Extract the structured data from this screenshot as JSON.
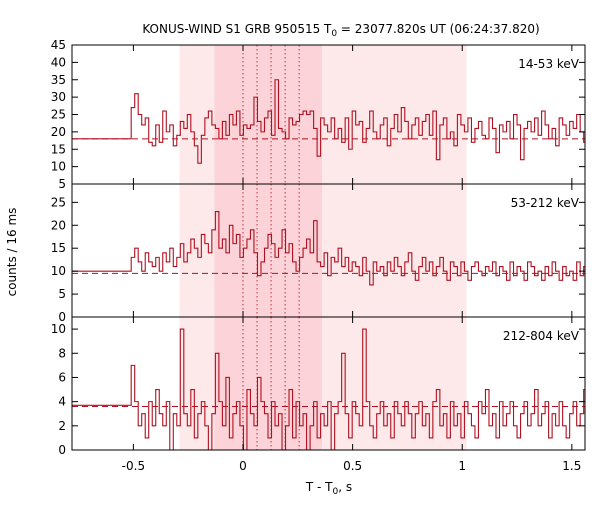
{
  "chart_data": {
    "type": "line",
    "title_main": "KONUS-WIND S1 GRB 950515 T",
    "title_sub": "0",
    "title_rest": " = 23077.820s UT (06:24:37.820)",
    "xlabel_main": "T - T",
    "xlabel_sub": "0",
    "xlabel_rest": ", s",
    "ylabel": "counts / 16 ms",
    "xlim": [
      -0.78,
      1.56
    ],
    "xticks": [
      -0.5,
      0,
      0.5,
      1,
      1.5
    ],
    "xtick_labels": [
      "-0.5",
      "0",
      "0.5",
      "1",
      "1.5"
    ],
    "bin_width_s": 0.016,
    "colors": {
      "line": "#b01020",
      "background": "#ffffff",
      "span_outer": "#fde8ea",
      "span_inner": "#fbd3d8",
      "vline": "#b01020"
    },
    "shaded_spans": [
      {
        "start": -0.29,
        "end": 1.02,
        "level": "outer"
      },
      {
        "start": -0.13,
        "end": 0.36,
        "level": "inner"
      }
    ],
    "vlines": [
      0,
      0.064,
      0.128,
      0.192,
      0.256
    ],
    "panels": [
      {
        "band": "14-53 keV",
        "ylim": [
          5,
          45
        ],
        "yticks": [
          5,
          10,
          15,
          20,
          25,
          30,
          35,
          40,
          45
        ],
        "ytick_labels": [
          "5",
          "10",
          "15",
          "20",
          "25",
          "30",
          "35",
          "40",
          "45"
        ],
        "background_level": 18,
        "pre_start": -0.78,
        "pre_end": -0.51,
        "pre_level": 18,
        "x_start": -0.51,
        "values": [
          27,
          31,
          25,
          22,
          24,
          17,
          16,
          22,
          17,
          26,
          20,
          22,
          16,
          19,
          23,
          21,
          25,
          20,
          16,
          11,
          19,
          24,
          26,
          22,
          21,
          18,
          23,
          19,
          25,
          22,
          26,
          19,
          22,
          21,
          22,
          30,
          23,
          20,
          24,
          26,
          19,
          35,
          21,
          20,
          18,
          24,
          22,
          23,
          25,
          26,
          25,
          26,
          21,
          13,
          24,
          22,
          20,
          24,
          18,
          21,
          17,
          24,
          15,
          26,
          22,
          23,
          17,
          21,
          26,
          20,
          18,
          22,
          24,
          16,
          21,
          25,
          20,
          27,
          23,
          18,
          22,
          24,
          19,
          23,
          25,
          19,
          26,
          12,
          22,
          24,
          18,
          20,
          16,
          25,
          22,
          20,
          24,
          17,
          21,
          23,
          19,
          18,
          24,
          21,
          14,
          22,
          20,
          23,
          18,
          25,
          22,
          12,
          21,
          23,
          20,
          24,
          19,
          26,
          22,
          18,
          21,
          16,
          24,
          22,
          19,
          23,
          21,
          25,
          20,
          17,
          22,
          24,
          20,
          15,
          23,
          21,
          19,
          24,
          22,
          20,
          17,
          21
        ]
      },
      {
        "band": "53-212 keV",
        "ylim": [
          0,
          29
        ],
        "yticks": [
          0,
          5,
          10,
          15,
          20,
          25
        ],
        "ytick_labels": [
          "0",
          "5",
          "10",
          "15",
          "20",
          "25"
        ],
        "background_level": 9.5,
        "pre_start": -0.78,
        "pre_end": -0.51,
        "pre_level": 10,
        "x_start": -0.51,
        "values": [
          13,
          15,
          12,
          10,
          14,
          12,
          11,
          13,
          10,
          14,
          12,
          15,
          11,
          13,
          16,
          12,
          14,
          17,
          15,
          13,
          18,
          16,
          14,
          19,
          23,
          15,
          17,
          14,
          20,
          16,
          18,
          13,
          15,
          17,
          19,
          14,
          9,
          12,
          15,
          18,
          16,
          13,
          15,
          19,
          14,
          16,
          12,
          10,
          13,
          15,
          17,
          14,
          21,
          12,
          11,
          14,
          9,
          13,
          12,
          15,
          11,
          13,
          10,
          12,
          11,
          9,
          13,
          10,
          7,
          12,
          10,
          11,
          9,
          12,
          10,
          13,
          11,
          9,
          12,
          14,
          10,
          8,
          11,
          13,
          10,
          12,
          9,
          11,
          13,
          10,
          8,
          12,
          11,
          9,
          12,
          10,
          8,
          11,
          12,
          10,
          9,
          11,
          10,
          12,
          9,
          11,
          10,
          8,
          12,
          9,
          11,
          10,
          8,
          12,
          11,
          9,
          10,
          8,
          11,
          9,
          12,
          10,
          8,
          11,
          9,
          10,
          8,
          12,
          9,
          11,
          10,
          8,
          11,
          9,
          10,
          12,
          8,
          11,
          9,
          10,
          9,
          11
        ]
      },
      {
        "band": "212-804 keV",
        "ylim": [
          0,
          11
        ],
        "yticks": [
          0,
          2,
          4,
          6,
          8,
          10
        ],
        "ytick_labels": [
          "0",
          "2",
          "4",
          "6",
          "8",
          "10"
        ],
        "background_level": 3.6,
        "pre_start": -0.78,
        "pre_end": -0.51,
        "pre_level": 3.7,
        "x_start": -0.51,
        "values": [
          7,
          4,
          2,
          3,
          1,
          4,
          2,
          5,
          3,
          2,
          4,
          0,
          3,
          2,
          10,
          3,
          2,
          5,
          1,
          3,
          4,
          2,
          0,
          3,
          8,
          4,
          2,
          6,
          1,
          3,
          4,
          2,
          0,
          5,
          3,
          2,
          6,
          4,
          3,
          1,
          4,
          2,
          3,
          0,
          2,
          5,
          1,
          4,
          2,
          3,
          0,
          2,
          4,
          1,
          3,
          2,
          4,
          0,
          3,
          4,
          8,
          3,
          1,
          4,
          3,
          2,
          10,
          4,
          2,
          1,
          3,
          4,
          2,
          3,
          1,
          4,
          3,
          2,
          4,
          3,
          1,
          3,
          4,
          2,
          3,
          1,
          4,
          5,
          2,
          3,
          1,
          4,
          2,
          3,
          1,
          4,
          3,
          2,
          1,
          4,
          3,
          5,
          2,
          3,
          1,
          4,
          2,
          3,
          4,
          2,
          1,
          3,
          4,
          2,
          3,
          5,
          2,
          3,
          4,
          1,
          3,
          2,
          4,
          2,
          1,
          3,
          4,
          2,
          3,
          5,
          2,
          3,
          1,
          4,
          2,
          3,
          4,
          2,
          1,
          3,
          4,
          2
        ]
      }
    ]
  }
}
